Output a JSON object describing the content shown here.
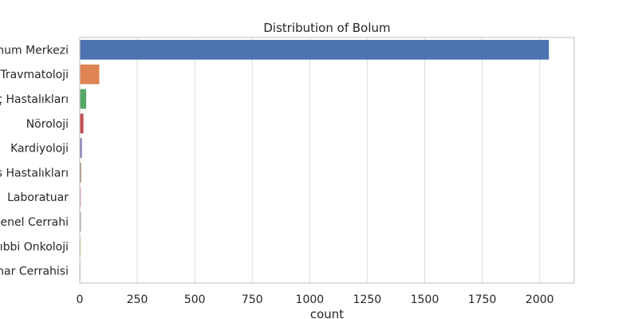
{
  "chart_data": {
    "type": "bar",
    "orientation": "horizontal",
    "title": "Distribution of Bolum",
    "xlabel": "count",
    "ylabel": "",
    "xlim": [
      0,
      2150
    ],
    "xticks": [
      0,
      250,
      500,
      750,
      1000,
      1250,
      1500,
      1750,
      2000
    ],
    "grid": true,
    "categories": [
      "num Merkezi",
      "Travmatoloji",
      "ç Hastalıkları",
      "Nöroloji",
      "Kardiyoloji",
      "s Hastalıkları",
      "Laboratuar",
      "Genel Cerrahi",
      "Tıbbi Onkoloji",
      "mar Cerrahisi"
    ],
    "values": [
      2040,
      85,
      28,
      16,
      9,
      6,
      5,
      5,
      4,
      2
    ],
    "colors": [
      "#4c72b0",
      "#dd8452",
      "#55a868",
      "#c44e52",
      "#8172b3",
      "#937860",
      "#da8bc3",
      "#8c8c8c",
      "#ccb974",
      "#64b5cd"
    ]
  }
}
